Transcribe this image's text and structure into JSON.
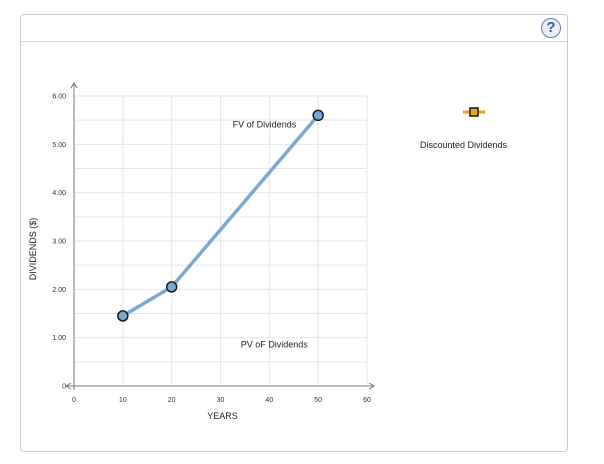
{
  "help": {
    "label": "?"
  },
  "legend": {
    "label": "Discounted Dividends",
    "marker_color": "#f4a21b"
  },
  "chart_data": {
    "type": "line",
    "xlabel": "YEARS",
    "ylabel": "DIVIDENDS ($)",
    "xlim": [
      0,
      60
    ],
    "ylim": [
      0,
      6
    ],
    "x_ticks": [
      0,
      10,
      20,
      30,
      40,
      50,
      60
    ],
    "y_ticks": [
      {
        "value": 0,
        "label": "0"
      },
      {
        "value": 1,
        "label": "1.00"
      },
      {
        "value": 2,
        "label": "2.00"
      },
      {
        "value": 3,
        "label": "3.00"
      },
      {
        "value": 4,
        "label": "4.00"
      },
      {
        "value": 5,
        "label": "5.00"
      },
      {
        "value": 6,
        "label": "6.00"
      }
    ],
    "grid": true,
    "series": [
      {
        "color": "#7aa9d4",
        "points": [
          {
            "x": 10,
            "y": 1.45
          },
          {
            "x": 20,
            "y": 2.05
          },
          {
            "x": 50,
            "y": 5.6
          }
        ]
      }
    ],
    "annotations": [
      {
        "text": "FV of Dividends",
        "x": 39,
        "y": 5.35
      },
      {
        "text": "PV oF Dividends",
        "x": 41,
        "y": 0.8
      }
    ]
  }
}
